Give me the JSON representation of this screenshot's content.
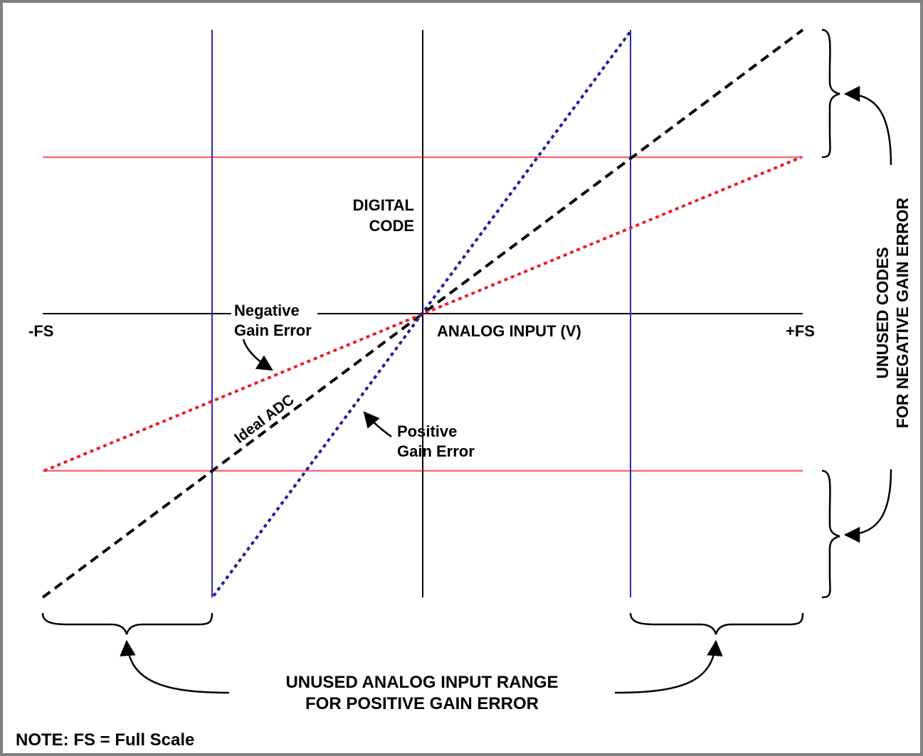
{
  "labels": {
    "digital_code_1": "DIGITAL",
    "digital_code_2": "CODE",
    "neg_fs": "-FS",
    "pos_fs": "+FS",
    "analog_input": "ANALOG INPUT (V)",
    "negative_gain_1": "Negative",
    "negative_gain_2": "Gain Error",
    "ideal_adc": "Ideal ADC",
    "positive_gain_1": "Positive",
    "positive_gain_2": "Gain Error",
    "unused_codes_1": "UNUSED CODES",
    "unused_codes_2": "FOR NEGATIVE GAIN ERROR",
    "unused_range_1": "UNUSED ANALOG INPUT RANGE",
    "unused_range_2": "FOR POSITIVE GAIN ERROR",
    "note": "NOTE: FS = Full Scale"
  },
  "colors": {
    "axis": "#000000",
    "ideal_line": "#000000",
    "negative_gain_line": "#ee1c24",
    "positive_gain_line": "#1f1f9e",
    "red_limit": "#f26b78",
    "blue_limit": "#2b2bb0",
    "border": "#808080"
  },
  "icons": {
    "arrow": "curved-arrow-icon",
    "brace": "curly-brace-icon"
  }
}
